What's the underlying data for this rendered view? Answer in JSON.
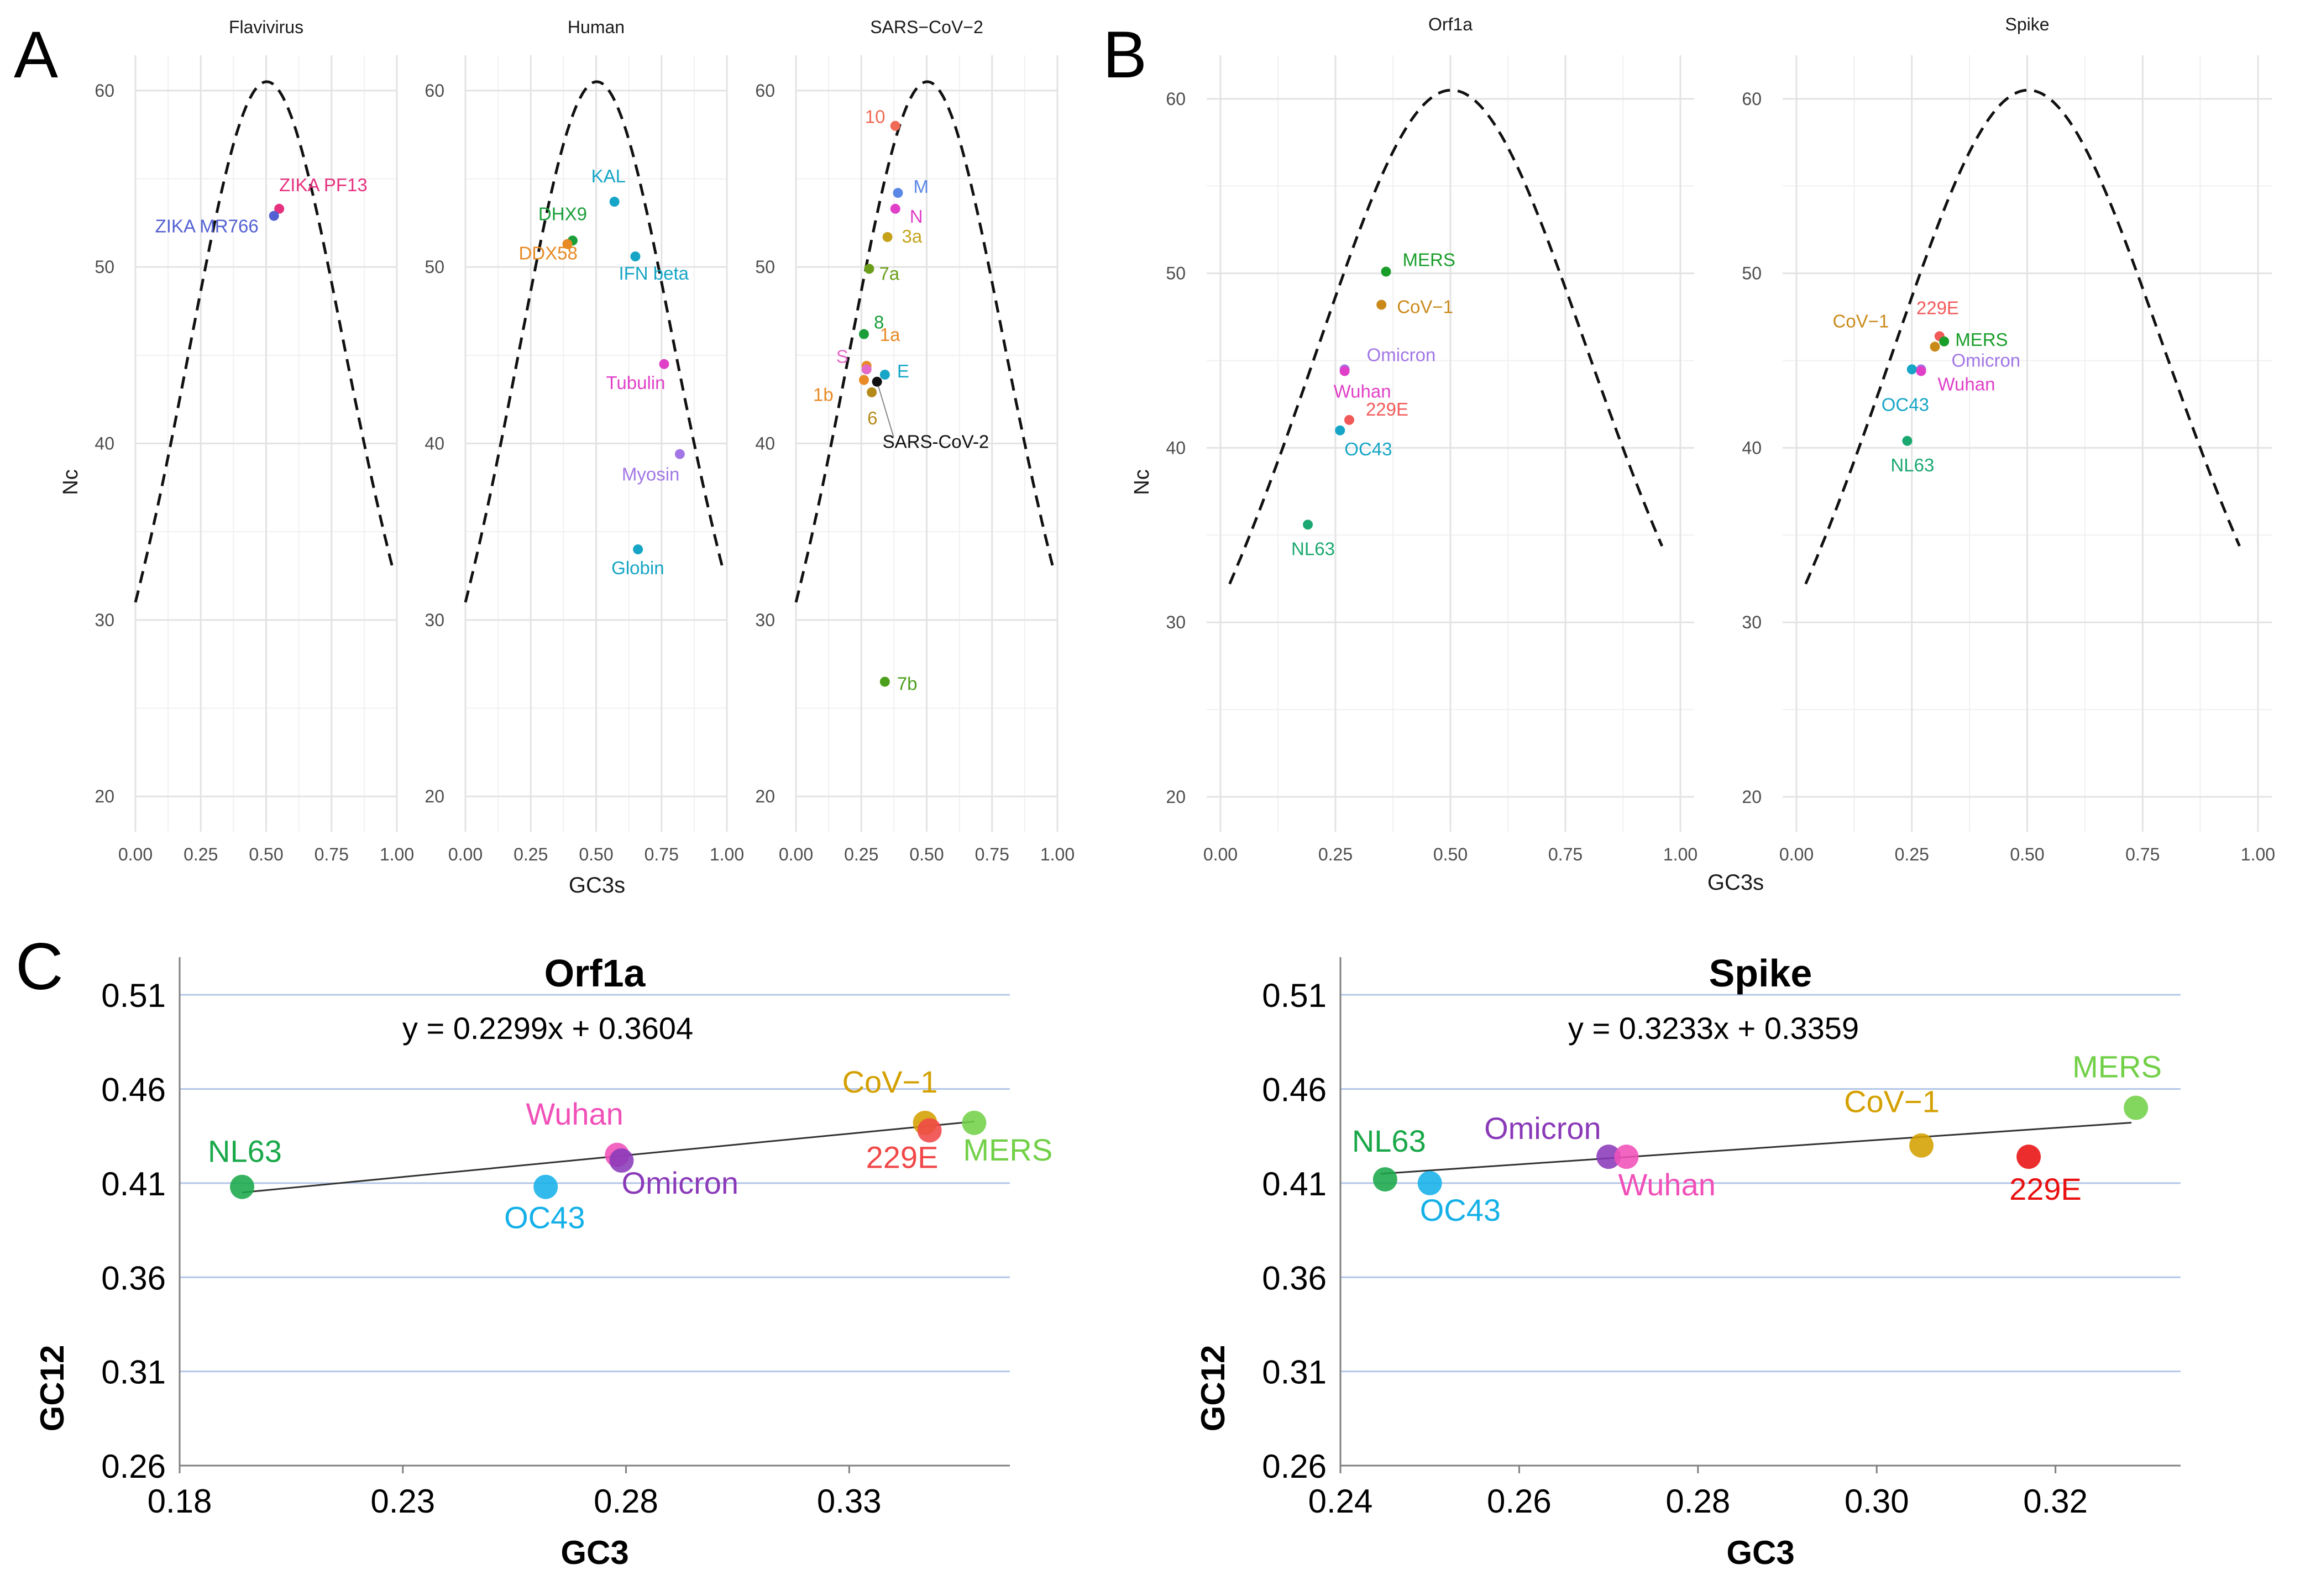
{
  "panel_letters": [
    "A",
    "B",
    "C"
  ],
  "chart_data": [
    {
      "id": "A1",
      "type": "scatter",
      "title": "Flavivirus",
      "xlabel": "",
      "ylabel": "Nc",
      "xlim": [
        0,
        1
      ],
      "ylim": [
        18,
        62
      ],
      "xticks": [
        "0.00",
        "0.25",
        "0.50",
        "0.75",
        "1.00"
      ],
      "xtick_values": [
        0,
        0.25,
        0.5,
        0.75,
        1
      ],
      "yticks": [
        "20",
        "30",
        "40",
        "50",
        "60"
      ],
      "ytick_values": [
        20,
        30,
        40,
        50,
        60
      ],
      "grid": true,
      "expected_curve": true,
      "points": [
        {
          "label": "ZIKA PF13",
          "x": 0.55,
          "y": 53.3,
          "color": "#e6317f"
        },
        {
          "label": "ZIKA MR766",
          "x": 0.53,
          "y": 52.9,
          "color": "#5360d2"
        }
      ]
    },
    {
      "id": "A2",
      "type": "scatter",
      "title": "Human",
      "xlabel": "GC3s",
      "ylabel": "",
      "xlim": [
        0,
        1
      ],
      "ylim": [
        18,
        62
      ],
      "xticks": [
        "0.00",
        "0.25",
        "0.50",
        "0.75",
        "1.00"
      ],
      "xtick_values": [
        0,
        0.25,
        0.5,
        0.75,
        1
      ],
      "yticks": [
        "20",
        "30",
        "40",
        "50",
        "60"
      ],
      "ytick_values": [
        20,
        30,
        40,
        50,
        60
      ],
      "grid": true,
      "expected_curve": true,
      "points": [
        {
          "label": "KAL",
          "x": 0.57,
          "y": 53.7,
          "color": "#16a5c6"
        },
        {
          "label": "DHX9",
          "x": 0.41,
          "y": 51.5,
          "color": "#1a9e3a"
        },
        {
          "label": "DDX58",
          "x": 0.39,
          "y": 51.3,
          "color": "#e88a25"
        },
        {
          "label": "IFN beta",
          "x": 0.65,
          "y": 50.6,
          "color": "#16a5c6"
        },
        {
          "label": "Tubulin",
          "x": 0.76,
          "y": 44.5,
          "color": "#e040c8"
        },
        {
          "label": "Myosin",
          "x": 0.82,
          "y": 39.4,
          "color": "#a276e6"
        },
        {
          "label": "Globin",
          "x": 0.66,
          "y": 34.0,
          "color": "#16a5c6"
        }
      ]
    },
    {
      "id": "A3",
      "type": "scatter",
      "title": "SARS−CoV−2",
      "xlabel": "",
      "ylabel": "",
      "xlim": [
        0,
        1
      ],
      "ylim": [
        18,
        62
      ],
      "xticks": [
        "0.00",
        "0.25",
        "0.50",
        "0.75",
        "1.00"
      ],
      "xtick_values": [
        0,
        0.25,
        0.5,
        0.75,
        1
      ],
      "yticks": [
        "20",
        "30",
        "40",
        "50",
        "60"
      ],
      "ytick_values": [
        20,
        30,
        40,
        50,
        60
      ],
      "grid": true,
      "expected_curve": true,
      "points": [
        {
          "label": "10",
          "x": 0.38,
          "y": 58.0,
          "color": "#f06a55"
        },
        {
          "label": "M",
          "x": 0.39,
          "y": 54.2,
          "color": "#5a86e6"
        },
        {
          "label": "N",
          "x": 0.38,
          "y": 53.3,
          "color": "#e040c8"
        },
        {
          "label": "3a",
          "x": 0.35,
          "y": 51.7,
          "color": "#c5a21a"
        },
        {
          "label": "7a",
          "x": 0.28,
          "y": 49.9,
          "color": "#6a9e1a"
        },
        {
          "label": "8",
          "x": 0.26,
          "y": 46.2,
          "color": "#1a9e3a"
        },
        {
          "label": "1a",
          "x": 0.27,
          "y": 44.4,
          "color": "#e88a25"
        },
        {
          "label": "S",
          "x": 0.27,
          "y": 44.2,
          "color": "#e46ac8"
        },
        {
          "label": "E",
          "x": 0.34,
          "y": 43.9,
          "color": "#16a5c6"
        },
        {
          "label": "1b",
          "x": 0.26,
          "y": 43.6,
          "color": "#e88a25"
        },
        {
          "label": "SARS-CoV-2",
          "x": 0.31,
          "y": 43.5,
          "color": "#111111"
        },
        {
          "label": "6",
          "x": 0.29,
          "y": 42.9,
          "color": "#b58a1a"
        },
        {
          "label": "7b",
          "x": 0.34,
          "y": 26.5,
          "color": "#4aa01a"
        }
      ]
    },
    {
      "id": "B1",
      "type": "scatter",
      "title": "Orf1a",
      "xlabel": "",
      "ylabel": "Nc",
      "xlim": [
        -0.03,
        1.03
      ],
      "ylim": [
        18,
        62.5
      ],
      "xticks": [
        "0.00",
        "0.25",
        "0.50",
        "0.75",
        "1.00"
      ],
      "xtick_values": [
        0,
        0.25,
        0.5,
        0.75,
        1
      ],
      "yticks": [
        "20",
        "30",
        "40",
        "50",
        "60"
      ],
      "ytick_values": [
        20,
        30,
        40,
        50,
        60
      ],
      "grid": true,
      "expected_curve": true,
      "points": [
        {
          "label": "MERS",
          "x": 0.36,
          "y": 50.1,
          "color": "#1a9e2a"
        },
        {
          "label": "CoV−1",
          "x": 0.35,
          "y": 48.2,
          "color": "#c98a1a"
        },
        {
          "label": "Omicron",
          "x": 0.27,
          "y": 44.5,
          "color": "#a276e6"
        },
        {
          "label": "Wuhan",
          "x": 0.27,
          "y": 44.4,
          "color": "#e040c8"
        },
        {
          "label": "229E",
          "x": 0.28,
          "y": 41.6,
          "color": "#f25a5a"
        },
        {
          "label": "OC43",
          "x": 0.26,
          "y": 41.0,
          "color": "#16a5c6"
        },
        {
          "label": "NL63",
          "x": 0.19,
          "y": 35.6,
          "color": "#1aa870"
        }
      ]
    },
    {
      "id": "B2",
      "type": "scatter",
      "title": "Spike",
      "xlabel": "",
      "ylabel": "",
      "xlim": [
        -0.03,
        1.03
      ],
      "ylim": [
        18,
        62.5
      ],
      "xticks": [
        "0.00",
        "0.25",
        "0.50",
        "0.75",
        "1.00"
      ],
      "xtick_values": [
        0,
        0.25,
        0.5,
        0.75,
        1
      ],
      "yticks": [
        "20",
        "30",
        "40",
        "50",
        "60"
      ],
      "ytick_values": [
        20,
        30,
        40,
        50,
        60
      ],
      "grid": true,
      "expected_curve": true,
      "points": [
        {
          "label": "229E",
          "x": 0.31,
          "y": 46.4,
          "color": "#f25a5a"
        },
        {
          "label": "MERS",
          "x": 0.32,
          "y": 46.1,
          "color": "#1a9e2a"
        },
        {
          "label": "CoV−1",
          "x": 0.3,
          "y": 45.8,
          "color": "#c98a1a"
        },
        {
          "label": "Omicron",
          "x": 0.27,
          "y": 44.5,
          "color": "#a276e6"
        },
        {
          "label": "OC43",
          "x": 0.25,
          "y": 44.5,
          "color": "#16a5c6"
        },
        {
          "label": "Wuhan",
          "x": 0.27,
          "y": 44.4,
          "color": "#e040c8"
        },
        {
          "label": "NL63",
          "x": 0.24,
          "y": 40.4,
          "color": "#1aa870"
        }
      ]
    },
    {
      "id": "C1",
      "type": "scatter",
      "title": "Orf1a",
      "xlabel": "GC3",
      "ylabel": "GC12",
      "xlim": [
        0.18,
        0.366
      ],
      "ylim": [
        0.26,
        0.53
      ],
      "xticks": [
        "0.18",
        "0.23",
        "0.28",
        "0.33"
      ],
      "xtick_values": [
        0.18,
        0.23,
        0.28,
        0.33
      ],
      "yticks": [
        "0.26",
        "0.31",
        "0.36",
        "0.41",
        "0.46",
        "0.51"
      ],
      "ytick_values": [
        0.26,
        0.31,
        0.36,
        0.41,
        0.46,
        0.51
      ],
      "grid": true,
      "equation": "y = 0.2299x + 0.3604",
      "trendline": {
        "slope": 0.2299,
        "intercept": 0.3604,
        "x_range": [
          0.194,
          0.358
        ]
      },
      "points": [
        {
          "label": "NL63",
          "x": 0.194,
          "y": 0.408,
          "color": "#1aa84a"
        },
        {
          "label": "OC43",
          "x": 0.262,
          "y": 0.408,
          "color": "#14b0e8"
        },
        {
          "label": "Wuhan",
          "x": 0.278,
          "y": 0.425,
          "color": "#f050b8"
        },
        {
          "label": "Omicron",
          "x": 0.279,
          "y": 0.422,
          "color": "#8a3ab8"
        },
        {
          "label": "CoV−1",
          "x": 0.347,
          "y": 0.442,
          "color": "#d4a000"
        },
        {
          "label": "229E",
          "x": 0.348,
          "y": 0.438,
          "color": "#f04848"
        },
        {
          "label": "MERS",
          "x": 0.358,
          "y": 0.442,
          "color": "#72d048"
        }
      ]
    },
    {
      "id": "C2",
      "type": "scatter",
      "title": "Spike",
      "xlabel": "GC3",
      "ylabel": "GC12",
      "xlim": [
        0.24,
        0.334
      ],
      "ylim": [
        0.26,
        0.53
      ],
      "xticks": [
        "0.24",
        "0.26",
        "0.28",
        "0.30",
        "0.32"
      ],
      "xtick_values": [
        0.24,
        0.26,
        0.28,
        0.3,
        0.32
      ],
      "yticks": [
        "0.26",
        "0.31",
        "0.36",
        "0.41",
        "0.46",
        "0.51"
      ],
      "ytick_values": [
        0.26,
        0.31,
        0.36,
        0.41,
        0.46,
        0.51
      ],
      "grid": true,
      "equation": "y = 0.3233x + 0.3359",
      "trendline": {
        "slope": 0.3233,
        "intercept": 0.3359,
        "x_range": [
          0.2445,
          0.3285
        ]
      },
      "points": [
        {
          "label": "NL63",
          "x": 0.245,
          "y": 0.412,
          "color": "#1aa84a"
        },
        {
          "label": "OC43",
          "x": 0.25,
          "y": 0.41,
          "color": "#14b0e8"
        },
        {
          "label": "Omicron",
          "x": 0.27,
          "y": 0.424,
          "color": "#8a3ab8"
        },
        {
          "label": "Wuhan",
          "x": 0.272,
          "y": 0.424,
          "color": "#f050b8"
        },
        {
          "label": "CoV−1",
          "x": 0.305,
          "y": 0.43,
          "color": "#d4a000"
        },
        {
          "label": "229E",
          "x": 0.317,
          "y": 0.424,
          "color": "#e81010"
        },
        {
          "label": "MERS",
          "x": 0.329,
          "y": 0.45,
          "color": "#72d048"
        }
      ]
    }
  ]
}
